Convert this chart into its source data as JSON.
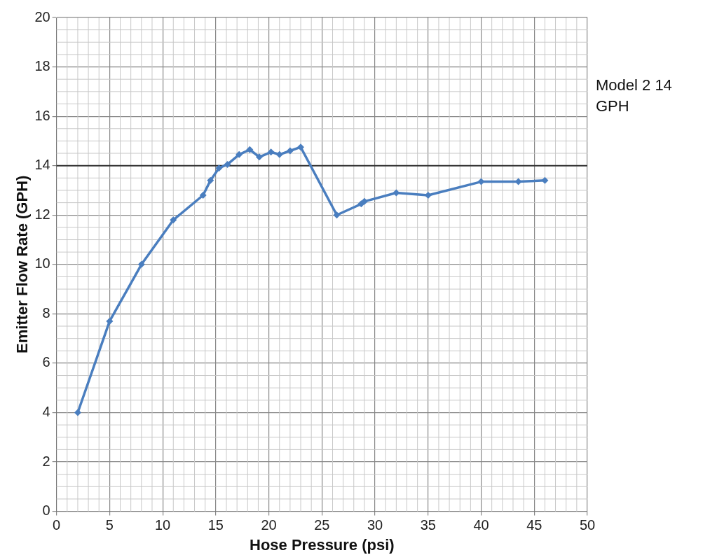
{
  "chart_data": {
    "type": "line",
    "xlabel": "Hose Pressure (psi)",
    "ylabel": "Emitter Flow Rate (GPH)",
    "series": [
      {
        "color": "#4a7ebf",
        "x": [
          2,
          5,
          8,
          11,
          13.8,
          14.5,
          15.3,
          16.1,
          17.2,
          18.2,
          19.1,
          20.2,
          21,
          22,
          23,
          26.4,
          28.7,
          29,
          32,
          35,
          40,
          43.5,
          46
        ],
        "values": [
          4,
          7.7,
          10,
          11.8,
          12.8,
          13.4,
          13.9,
          14.05,
          14.45,
          14.65,
          14.35,
          14.55,
          14.45,
          14.6,
          14.75,
          12,
          12.45,
          12.55,
          12.9,
          12.8,
          13.35,
          13.35,
          13.4
        ]
      }
    ],
    "xlim": [
      0,
      50
    ],
    "xticks": [
      0,
      5,
      10,
      15,
      20,
      25,
      30,
      35,
      40,
      45,
      50
    ],
    "ylim": [
      0,
      20
    ],
    "yticks": [
      0,
      2,
      4,
      6,
      8,
      10,
      12,
      14,
      16,
      18,
      20
    ],
    "grid": true,
    "legend": false,
    "marker": "diamond",
    "line_style": "solid",
    "ref_lines": [
      {
        "axis": "y",
        "value": 14,
        "label": "Model 2 14 GPH",
        "color": "#333333"
      }
    ]
  }
}
